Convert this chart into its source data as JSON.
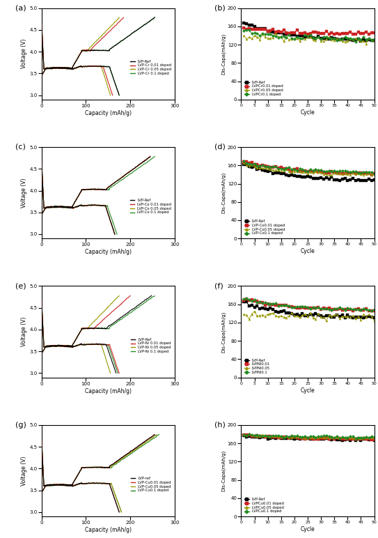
{
  "metals": [
    "Cr",
    "Co",
    "Ni",
    "Cu"
  ],
  "panel_labels_left": [
    "(a)",
    "(c)",
    "(e)",
    "(g)"
  ],
  "panel_labels_right": [
    "(b)",
    "(d)",
    "(f)",
    "(h)"
  ],
  "colors": [
    "#000000",
    "#cc2222",
    "#999900",
    "#228B22"
  ],
  "voltage_ylim": [
    2.9,
    5.0
  ],
  "voltage_xlim": [
    0,
    300
  ],
  "cycle_ylim": [
    0,
    200
  ],
  "cycle_xlim": [
    0,
    50
  ],
  "voltage_ylabel": "Voltage (V)",
  "voltage_xlabel": "Capacity (mAh/g)",
  "cycle_ylabel": "Dis-Capa(mAh/g)",
  "cycle_xlabel": "Cycle",
  "legend_labels_voltage": {
    "Cr": [
      "LVP-Ref",
      "LVP-Cr 0.01 doped",
      "LVP-Cr 0.05 doped",
      "LVP-Cr 0.1 doped"
    ],
    "Co": [
      "LVP-Ref",
      "LVP-Co 0.01 doped",
      "LVP-Co 0.05 doped",
      "LVP-Co 0.1 doped"
    ],
    "Ni": [
      "LVP-Ref",
      "LVP-Ni 0.01 doped",
      "LVP-Ni 0.05 doped",
      "LVP-Ni 0.1 doped"
    ],
    "Cu": [
      "LVP-ref",
      "LVP-Cu0.01 doped",
      "LVP-Cu0.05 doped",
      "LVP-Cu0.1 doped"
    ]
  },
  "legend_labels_cycle": {
    "Cr": [
      "LVP-Ref",
      "LVPCr0.01 doped",
      "LVPCr0.05 doped",
      "LVPCr0.1 doped"
    ],
    "Co": [
      "LVP-Ref",
      "LVP-Co0.01 doped",
      "LVP-Co0.05 doped",
      "LVP-Co0.1 doped"
    ],
    "Ni": [
      "LVP-Ref",
      "LVPNI0.01",
      "LVPNI0.05",
      "LVPNI0.1"
    ],
    "Cu": [
      "LVP-Ref",
      "LVPCu0.01 doped",
      "LVPCu0.05 doped",
      "LVPCu0.1 doped"
    ]
  },
  "metal_params": {
    "Cr": {
      "ref": {
        "dc": 175,
        "cc": 255,
        "sc": 170,
        "ec": 130,
        "noise_c": 1.5
      },
      "d001": {
        "dc": 160,
        "cc": 185,
        "sc": 158,
        "ec": 144,
        "noise_c": 2.0
      },
      "d005": {
        "dc": 155,
        "cc": 175,
        "sc": 140,
        "ec": 130,
        "noise_c": 3.5
      },
      "d01": {
        "dc": 175,
        "cc": 255,
        "sc": 152,
        "ec": 132,
        "noise_c": 2.5
      }
    },
    "Co": {
      "ref": {
        "dc": 165,
        "cc": 245,
        "sc": 165,
        "ec": 128,
        "noise_c": 1.5
      },
      "d001": {
        "dc": 165,
        "cc": 245,
        "sc": 172,
        "ec": 142,
        "noise_c": 1.5
      },
      "d005": {
        "dc": 165,
        "cc": 245,
        "sc": 163,
        "ec": 140,
        "noise_c": 1.5
      },
      "d01": {
        "dc": 170,
        "cc": 255,
        "sc": 168,
        "ec": 145,
        "noise_c": 1.5
      }
    },
    "Ni": {
      "ref": {
        "dc": 168,
        "cc": 248,
        "sc": 165,
        "ec": 132,
        "noise_c": 2.0
      },
      "d001": {
        "dc": 175,
        "cc": 200,
        "sc": 173,
        "ec": 148,
        "noise_c": 1.5
      },
      "d005": {
        "dc": 155,
        "cc": 175,
        "sc": 138,
        "ec": 132,
        "noise_c": 3.5
      },
      "d01": {
        "dc": 172,
        "cc": 255,
        "sc": 175,
        "ec": 148,
        "noise_c": 1.5
      }
    },
    "Cu": {
      "ref": {
        "dc": 175,
        "cc": 255,
        "sc": 175,
        "ec": 168,
        "noise_c": 1.2
      },
      "d001": {
        "dc": 175,
        "cc": 255,
        "sc": 178,
        "ec": 170,
        "noise_c": 1.2
      },
      "d005": {
        "dc": 180,
        "cc": 260,
        "sc": 179,
        "ec": 172,
        "noise_c": 1.2
      },
      "d01": {
        "dc": 180,
        "cc": 265,
        "sc": 180,
        "ec": 173,
        "noise_c": 1.2
      }
    }
  }
}
